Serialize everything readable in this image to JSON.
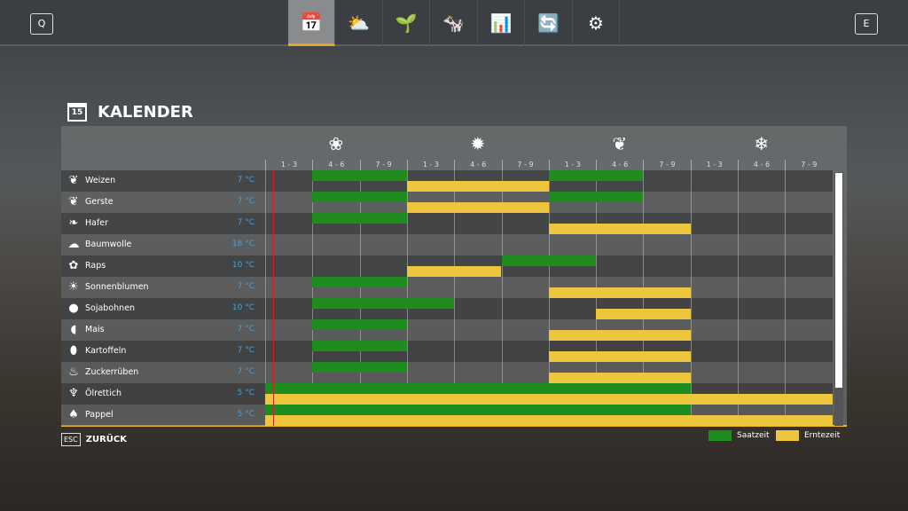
{
  "topbar": {
    "left_key": "Q",
    "right_key": "E",
    "tabs": [
      {
        "name": "calendar",
        "icon": "📅",
        "label": "15"
      },
      {
        "name": "weather",
        "icon": "⛅"
      },
      {
        "name": "crops",
        "icon": "🌱"
      },
      {
        "name": "animals",
        "icon": "🐄"
      },
      {
        "name": "statistics",
        "icon": "📊"
      },
      {
        "name": "cycle",
        "icon": "🔄"
      },
      {
        "name": "settings",
        "icon": "⚙"
      }
    ]
  },
  "title": {
    "icon_day": "15",
    "text": "KALENDER"
  },
  "seasons": [
    {
      "name": "spring",
      "icon": "❀"
    },
    {
      "name": "summer",
      "icon": "✹"
    },
    {
      "name": "autumn",
      "icon": "❦"
    },
    {
      "name": "winter",
      "icon": "❄"
    }
  ],
  "months": [
    "1 - 3",
    "4 - 6",
    "7 - 9",
    "1 - 3",
    "4 - 6",
    "7 - 9",
    "1 - 3",
    "4 - 6",
    "7 - 9",
    "1 - 3",
    "4 - 6",
    "7 - 9"
  ],
  "crops": [
    {
      "name": "Weizen",
      "icon": "❦",
      "temp": "7 °C",
      "sow": [
        [
          1,
          3
        ],
        [
          6,
          8
        ]
      ],
      "harvest": [
        [
          3,
          6
        ]
      ]
    },
    {
      "name": "Gerste",
      "icon": "❦",
      "temp": "7 °C",
      "sow": [
        [
          1,
          3
        ],
        [
          6,
          8
        ]
      ],
      "harvest": [
        [
          3,
          6
        ]
      ]
    },
    {
      "name": "Hafer",
      "icon": "❧",
      "temp": "7 °C",
      "sow": [
        [
          1,
          3
        ]
      ],
      "harvest": [
        [
          6,
          9
        ]
      ]
    },
    {
      "name": "Baumwolle",
      "icon": "☁",
      "temp": "18 °C",
      "sow": [],
      "harvest": []
    },
    {
      "name": "Raps",
      "icon": "✿",
      "temp": "10 °C",
      "sow": [
        [
          5,
          7
        ]
      ],
      "harvest": [
        [
          3,
          5
        ]
      ]
    },
    {
      "name": "Sonnenblumen",
      "icon": "☀",
      "temp": "7 °C",
      "sow": [
        [
          1,
          3
        ]
      ],
      "harvest": [
        [
          6,
          9
        ]
      ]
    },
    {
      "name": "Sojabohnen",
      "icon": "●",
      "temp": "10 °C",
      "sow": [
        [
          1,
          4
        ]
      ],
      "harvest": [
        [
          7,
          9
        ]
      ]
    },
    {
      "name": "Mais",
      "icon": "◖",
      "temp": "7 °C",
      "sow": [
        [
          1,
          3
        ]
      ],
      "harvest": [
        [
          6,
          9
        ]
      ]
    },
    {
      "name": "Kartoffeln",
      "icon": "⬮",
      "temp": "7 °C",
      "sow": [
        [
          1,
          3
        ]
      ],
      "harvest": [
        [
          6,
          9
        ]
      ]
    },
    {
      "name": "Zuckerrüben",
      "icon": "♨",
      "temp": "7 °C",
      "sow": [
        [
          1,
          3
        ]
      ],
      "harvest": [
        [
          6,
          9
        ]
      ]
    },
    {
      "name": "Ölrettich",
      "icon": "♆",
      "temp": "5 °C",
      "sow": [
        [
          0,
          9
        ]
      ],
      "harvest": [
        [
          0,
          12
        ]
      ]
    },
    {
      "name": "Pappel",
      "icon": "♠",
      "temp": "5 °C",
      "sow": [
        [
          0,
          9
        ]
      ],
      "harvest": [
        [
          0,
          12
        ]
      ]
    }
  ],
  "footer": {
    "esc_key": "ESC",
    "back_label": "ZURÜCK"
  },
  "legend": {
    "sow_label": "Saatzeit",
    "harvest_label": "Erntezeit",
    "sow_color": "#1f8c1f",
    "harvest_color": "#eec63e"
  }
}
